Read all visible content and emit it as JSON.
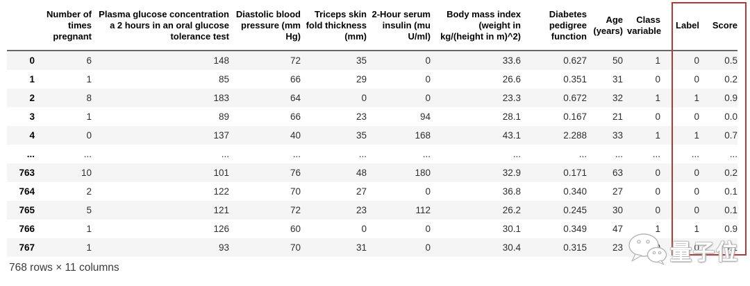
{
  "table": {
    "index_header": "",
    "columns": [
      "Number of times pregnant",
      "Plasma glucose concentration a 2 hours in an oral glucose tolerance test",
      "Diastolic blood pressure (mm Hg)",
      "Triceps skin fold thickness (mm)",
      "2-Hour serum insulin (mu U/ml)",
      "Body mass index (weight in kg/(height in m)^2)",
      "Diabetes pedigree function",
      "Age (years)",
      "Class variable",
      "Label",
      "Score"
    ],
    "rows": [
      {
        "index": "0",
        "cells": [
          "6",
          "148",
          "72",
          "35",
          "0",
          "33.6",
          "0.627",
          "50",
          "1",
          "0",
          "0.5"
        ]
      },
      {
        "index": "1",
        "cells": [
          "1",
          "85",
          "66",
          "29",
          "0",
          "26.6",
          "0.351",
          "31",
          "0",
          "0",
          "0.2"
        ]
      },
      {
        "index": "2",
        "cells": [
          "8",
          "183",
          "64",
          "0",
          "0",
          "23.3",
          "0.672",
          "32",
          "1",
          "1",
          "0.9"
        ]
      },
      {
        "index": "3",
        "cells": [
          "1",
          "89",
          "66",
          "23",
          "94",
          "28.1",
          "0.167",
          "21",
          "0",
          "0",
          "0.0"
        ]
      },
      {
        "index": "4",
        "cells": [
          "0",
          "137",
          "40",
          "35",
          "168",
          "43.1",
          "2.288",
          "33",
          "1",
          "1",
          "0.7"
        ]
      },
      {
        "index": "...",
        "cells": [
          "...",
          "...",
          "...",
          "...",
          "...",
          "...",
          "...",
          "...",
          "...",
          "...",
          "..."
        ]
      },
      {
        "index": "763",
        "cells": [
          "10",
          "101",
          "76",
          "48",
          "180",
          "32.9",
          "0.171",
          "63",
          "0",
          "0",
          "0.2"
        ]
      },
      {
        "index": "764",
        "cells": [
          "2",
          "122",
          "70",
          "27",
          "0",
          "36.8",
          "0.340",
          "27",
          "0",
          "0",
          "0.1"
        ]
      },
      {
        "index": "765",
        "cells": [
          "5",
          "121",
          "72",
          "23",
          "112",
          "26.2",
          "0.245",
          "30",
          "0",
          "0",
          "0.1"
        ]
      },
      {
        "index": "766",
        "cells": [
          "1",
          "126",
          "60",
          "0",
          "0",
          "30.1",
          "0.349",
          "47",
          "1",
          "1",
          "0.9"
        ]
      },
      {
        "index": "767",
        "cells": [
          "1",
          "93",
          "70",
          "31",
          "0",
          "30.4",
          "0.315",
          "23",
          "0",
          "0",
          "0.1"
        ]
      }
    ],
    "footer": "768 rows × 11 columns"
  },
  "highlight": {
    "highlighted_columns": [
      "Label",
      "Score"
    ],
    "color": "#b03a36"
  },
  "watermark": {
    "icon": "wechat-chat-bubbles-icon",
    "text": "量子位"
  }
}
